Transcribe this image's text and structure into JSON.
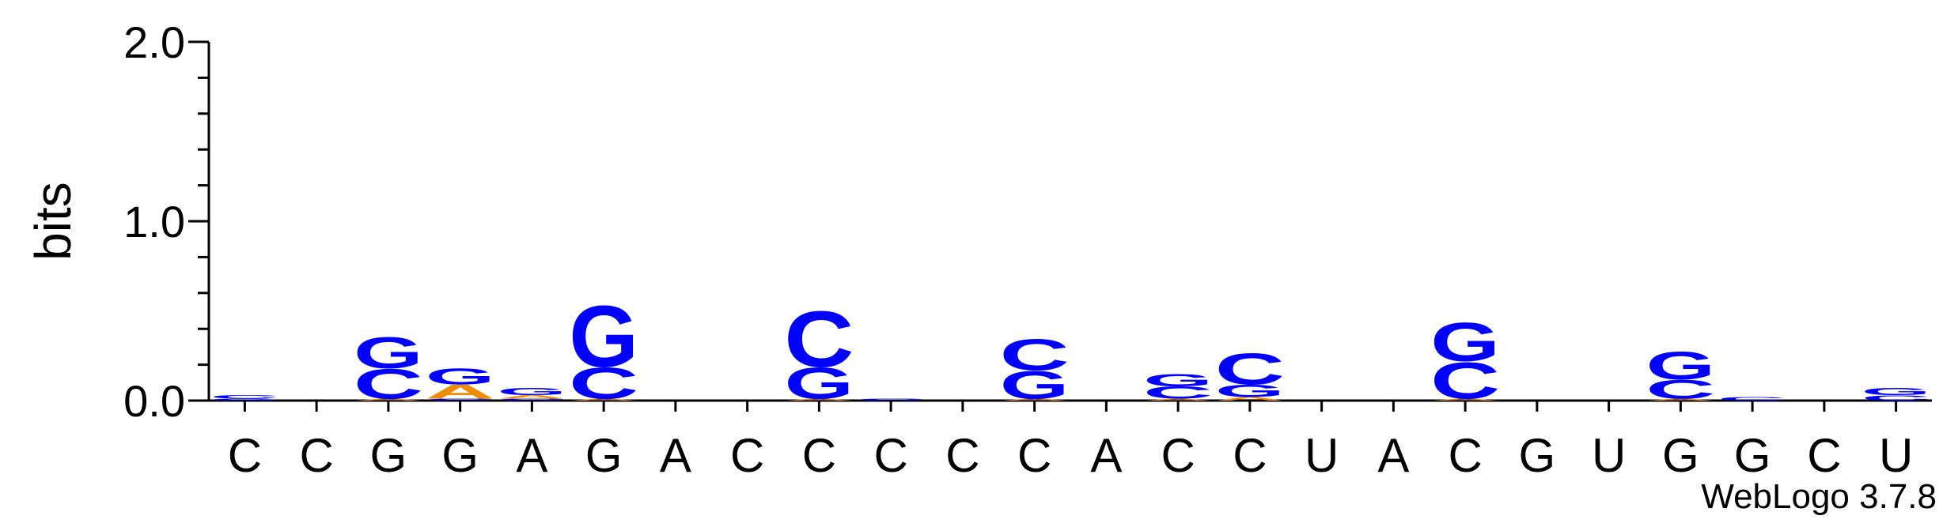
{
  "chart_data": {
    "type": "logo",
    "ylabel": "bits",
    "footer": "WebLogo 3.7.8",
    "categories": [
      "C",
      "C",
      "G",
      "G",
      "A",
      "G",
      "A",
      "C",
      "C",
      "C",
      "C",
      "C",
      "A",
      "C",
      "C",
      "U",
      "A",
      "C",
      "G",
      "U",
      "G",
      "G",
      "C",
      "U"
    ],
    "ylim": [
      0,
      2
    ],
    "yticks": [
      {
        "value": 0,
        "label": "0.0"
      },
      {
        "value": 1,
        "label": "1.0"
      },
      {
        "value": 2,
        "label": "2.0"
      }
    ],
    "minor_yticks": [
      0.2,
      0.4,
      0.6,
      0.8,
      1.2,
      1.4,
      1.6,
      1.8
    ],
    "series": [
      {
        "name": "A",
        "color": "#f08c00",
        "values": [
          0,
          0,
          0.01,
          0.08,
          0.02,
          0.01,
          0,
          0,
          0.01,
          0,
          0,
          0.01,
          0,
          0.01,
          0.02,
          0,
          0,
          0.01,
          0,
          0,
          0.01,
          0,
          0,
          0
        ]
      },
      {
        "name": "C",
        "color": "#0000ff",
        "values": [
          0.02,
          0,
          0.17,
          0.01,
          0.01,
          0.18,
          0,
          0,
          0.32,
          0.01,
          0,
          0.18,
          0,
          0.07,
          0.18,
          0,
          0,
          0.21,
          0,
          0,
          0.11,
          0.02,
          0,
          0.03
        ]
      },
      {
        "name": "G",
        "color": "#0000ff",
        "values": [
          0.01,
          0,
          0.18,
          0.09,
          0.04,
          0.35,
          0,
          0,
          0.18,
          0,
          0,
          0.16,
          0,
          0.07,
          0.07,
          0,
          0,
          0.22,
          0,
          0,
          0.16,
          0,
          0,
          0.04
        ]
      },
      {
        "name": "U",
        "color": "#ff0000",
        "values": [
          0,
          0,
          0,
          0,
          0,
          0,
          0,
          0,
          0,
          0,
          0,
          0,
          0,
          0,
          0,
          0,
          0,
          0,
          0,
          0,
          0,
          0,
          0,
          0
        ]
      }
    ]
  }
}
